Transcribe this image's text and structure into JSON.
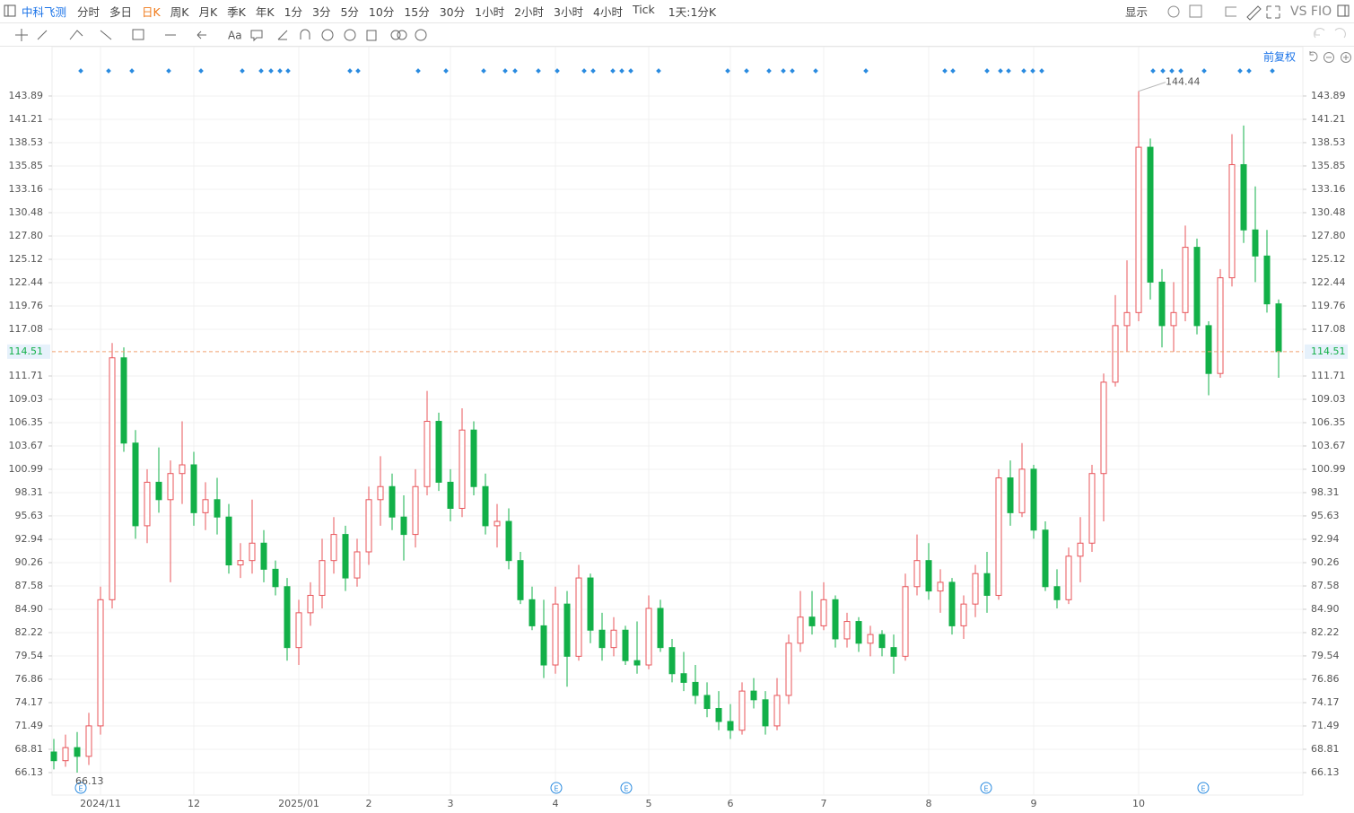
{
  "toolbar": {
    "stock": "中科飞测",
    "periods": [
      "分时",
      "多日",
      "日K",
      "周K",
      "月K",
      "季K",
      "年K",
      "1分",
      "3分",
      "5分",
      "10分",
      "15分",
      "30分",
      "1小时",
      "2小时",
      "3小时",
      "4小时",
      "Tick"
    ],
    "active": "日K",
    "period_setting": "1天:1分K",
    "display": "显示",
    "vs": "VS FIO"
  },
  "adjust": "前复权",
  "chart_data": {
    "type": "candlestick",
    "categories": [
      null,
      null,
      null,
      null,
      "2024/11",
      null,
      null,
      null,
      null,
      null,
      null,
      null,
      "12",
      null,
      null,
      null,
      null,
      null,
      null,
      null,
      null,
      "2025/01",
      null,
      null,
      null,
      null,
      null,
      "2",
      null,
      null,
      null,
      null,
      null,
      null,
      "3",
      null,
      null,
      null,
      null,
      null,
      null,
      null,
      null,
      "4",
      null,
      null,
      null,
      null,
      null,
      null,
      null,
      "5",
      null,
      null,
      null,
      null,
      null,
      null,
      "6",
      null,
      null,
      null,
      null,
      null,
      null,
      null,
      "7",
      null,
      null,
      null,
      null,
      null,
      null,
      null,
      null,
      "8",
      null,
      null,
      null,
      null,
      null,
      null,
      null,
      null,
      "9",
      null,
      null,
      null,
      null,
      null,
      null,
      null,
      null,
      "10",
      null,
      null,
      null,
      null,
      null,
      null,
      null,
      null,
      null,
      null,
      null,
      null
    ],
    "open": [
      68.5,
      67.5,
      69.0,
      68.0,
      71.5,
      86.0,
      113.8,
      104.0,
      94.5,
      99.5,
      97.5,
      100.5,
      101.5,
      96.0,
      97.5,
      95.5,
      90.0,
      90.5,
      92.5,
      89.5,
      87.5,
      80.5,
      84.5,
      86.5,
      90.5,
      93.5,
      88.5,
      91.5,
      97.5,
      99.0,
      95.5,
      93.5,
      99.0,
      106.5,
      99.5,
      96.5,
      105.5,
      99.0,
      94.5,
      95.0,
      90.5,
      86.0,
      83.0,
      78.5,
      85.5,
      79.5,
      88.5,
      82.5,
      80.5,
      82.5,
      79.0,
      78.5,
      85.0,
      80.5,
      77.5,
      76.5,
      75.0,
      73.5,
      72.0,
      71.0,
      75.5,
      74.5,
      71.5,
      75.0,
      81.0,
      84.0,
      83.0,
      86.0,
      81.5,
      83.5,
      81.0,
      82.0,
      80.5,
      79.5,
      87.5,
      90.5,
      87.0,
      88.0,
      83.0,
      85.5,
      89.0,
      86.5,
      100.0,
      96.0,
      101.0,
      94.0,
      87.5,
      86.0,
      91.0,
      92.5,
      100.5,
      111.0,
      117.5,
      119.0,
      138.0,
      122.5,
      117.5,
      119.0,
      126.5,
      117.5,
      112.0,
      123.0,
      136.0,
      128.5,
      125.5,
      120.0
    ],
    "high": [
      70.0,
      70.5,
      70.8,
      73.0,
      87.5,
      115.5,
      115.0,
      105.5,
      101.0,
      103.5,
      102.0,
      106.5,
      103.0,
      99.5,
      100.0,
      97.0,
      92.5,
      97.5,
      94.0,
      90.5,
      88.5,
      86.0,
      88.0,
      93.0,
      95.5,
      94.5,
      93.0,
      99.0,
      102.5,
      100.5,
      98.0,
      101.0,
      110.0,
      107.5,
      101.0,
      108.0,
      106.5,
      100.5,
      97.0,
      96.5,
      91.5,
      87.5,
      86.0,
      87.5,
      87.0,
      90.0,
      89.0,
      84.5,
      84.0,
      83.0,
      83.5,
      86.5,
      86.0,
      81.5,
      80.0,
      78.5,
      76.5,
      75.5,
      74.0,
      76.5,
      77.0,
      75.5,
      77.0,
      82.0,
      87.0,
      87.0,
      88.0,
      86.5,
      84.5,
      84.0,
      83.0,
      82.5,
      82.0,
      89.0,
      93.5,
      92.5,
      89.5,
      88.5,
      86.5,
      90.0,
      91.5,
      101.0,
      102.0,
      104.0,
      101.5,
      95.0,
      89.5,
      92.0,
      95.5,
      101.5,
      112.0,
      121.0,
      125.0,
      144.44,
      139.0,
      124.0,
      122.5,
      129.0,
      127.5,
      118.0,
      124.0,
      139.5,
      140.5,
      133.5,
      128.5,
      120.5
    ],
    "low": [
      66.5,
      66.8,
      66.13,
      67.0,
      70.5,
      85.0,
      103.0,
      93.0,
      92.5,
      96.0,
      88.0,
      97.0,
      94.5,
      94.0,
      93.5,
      89.0,
      88.5,
      89.0,
      88.0,
      86.5,
      79.0,
      78.5,
      83.0,
      85.0,
      89.0,
      87.0,
      87.5,
      90.0,
      94.5,
      94.0,
      90.5,
      92.0,
      98.0,
      98.5,
      95.0,
      95.5,
      98.0,
      93.5,
      92.0,
      89.5,
      85.5,
      82.5,
      77.0,
      77.5,
      76.0,
      79.0,
      81.0,
      79.0,
      79.5,
      78.5,
      77.5,
      78.0,
      80.0,
      76.5,
      75.5,
      74.0,
      72.5,
      71.0,
      70.0,
      70.5,
      73.5,
      70.5,
      71.0,
      74.0,
      80.0,
      82.0,
      82.5,
      80.5,
      80.5,
      80.0,
      79.5,
      79.5,
      77.5,
      79.0,
      86.5,
      86.0,
      84.5,
      82.0,
      81.5,
      84.0,
      84.5,
      86.0,
      94.5,
      95.5,
      93.0,
      87.0,
      85.0,
      85.5,
      88.0,
      91.5,
      95.0,
      110.5,
      114.5,
      118.0,
      120.5,
      115.0,
      114.5,
      118.0,
      116.5,
      109.5,
      111.5,
      122.0,
      127.0,
      122.5,
      119.0,
      111.5
    ],
    "close": [
      67.5,
      69.0,
      68.0,
      71.5,
      86.0,
      113.8,
      104.0,
      94.5,
      99.5,
      97.5,
      100.5,
      101.5,
      96.0,
      97.5,
      95.5,
      90.0,
      90.5,
      92.5,
      89.5,
      87.5,
      80.5,
      84.5,
      86.5,
      90.5,
      93.5,
      88.5,
      91.5,
      97.5,
      99.0,
      95.5,
      93.5,
      99.0,
      106.5,
      99.5,
      96.5,
      105.5,
      99.0,
      94.5,
      95.0,
      90.5,
      86.0,
      83.0,
      78.5,
      85.5,
      79.5,
      88.5,
      82.5,
      80.5,
      82.5,
      79.0,
      78.5,
      85.0,
      80.5,
      77.5,
      76.5,
      75.0,
      73.5,
      72.0,
      71.0,
      75.5,
      74.5,
      71.5,
      75.0,
      81.0,
      84.0,
      83.0,
      86.0,
      81.5,
      83.5,
      81.0,
      82.0,
      80.5,
      79.5,
      87.5,
      90.5,
      87.0,
      88.0,
      83.0,
      85.5,
      89.0,
      86.5,
      100.0,
      96.0,
      101.0,
      94.0,
      87.5,
      86.0,
      91.0,
      92.5,
      100.5,
      111.0,
      117.5,
      119.0,
      138.0,
      122.5,
      117.5,
      119.0,
      126.5,
      117.5,
      112.0,
      123.0,
      136.0,
      128.5,
      125.5,
      120.0,
      114.51
    ],
    "up_color": "#e8545a",
    "down_color": "#12b048",
    "ylim": [
      63.55,
      149.56
    ],
    "yticks": [
      143.89,
      141.21,
      138.53,
      135.85,
      133.16,
      130.48,
      {
        "value": 127.8,
        "label": "127.80"
      },
      125.12,
      122.44,
      119.76,
      117.08,
      111.71,
      109.03,
      106.35,
      103.67,
      100.99,
      98.31,
      95.63,
      92.94,
      90.26,
      87.58,
      {
        "value": 84.9,
        "label": "84.90"
      },
      82.22,
      79.54,
      76.86,
      74.17,
      71.49,
      68.81,
      66.13
    ],
    "grid": true
  }
}
